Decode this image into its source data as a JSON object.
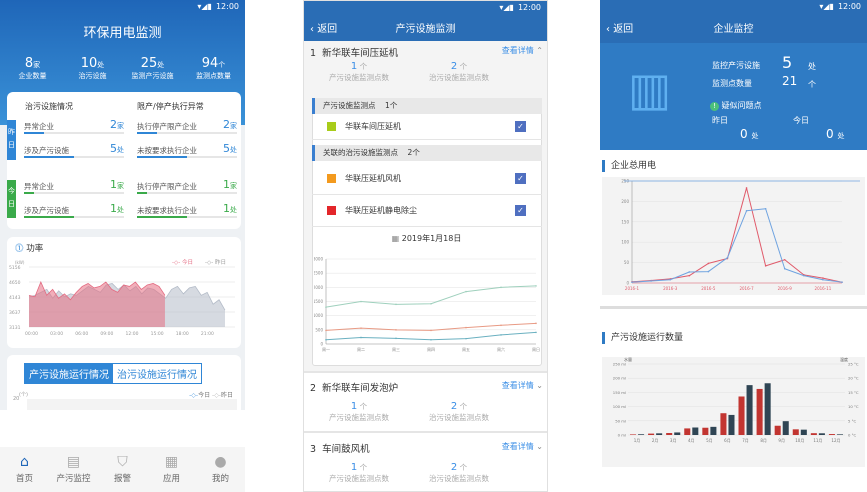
{
  "status_time": "12:00",
  "home": {
    "title": "环保用电监测",
    "stats": [
      {
        "value": "8",
        "unit": "家",
        "label": "企业数量"
      },
      {
        "value": "10",
        "unit": "处",
        "label": "治污设施"
      },
      {
        "value": "25",
        "unit": "处",
        "label": "监测产污设施"
      },
      {
        "value": "94",
        "unit": "个",
        "label": "监测点数量"
      }
    ],
    "left_heading": "治污设施情况",
    "right_heading": "限产/停产执行异常",
    "yesterday_label": "昨日",
    "today_label": "今日",
    "yesterday": [
      {
        "label": "异常企业",
        "value": "2",
        "unit": "家",
        "progress": 0.2
      },
      {
        "label": "涉及产污设施",
        "value": "5",
        "unit": "处",
        "progress": 0.5
      },
      {
        "label": "执行停产限产企业",
        "value": "2",
        "unit": "家",
        "progress": 0.2
      },
      {
        "label": "未按要求执行企业",
        "value": "5",
        "unit": "处",
        "progress": 0.5
      }
    ],
    "today": [
      {
        "label": "异常企业",
        "value": "1",
        "unit": "家",
        "progress": 0.1
      },
      {
        "label": "涉及产污设施",
        "value": "1",
        "unit": "处",
        "progress": 0.5
      },
      {
        "label": "执行停产限产企业",
        "value": "1",
        "unit": "家",
        "progress": 0.1
      },
      {
        "label": "未按要求执行企业",
        "value": "1",
        "unit": "处",
        "progress": 0.5
      }
    ],
    "power": {
      "title": "功率",
      "unit": "(kW)",
      "legend": [
        "今日",
        "昨日"
      ],
      "yticks": [
        "5156",
        "4650",
        "4143",
        "3637",
        "3131"
      ],
      "xticks": [
        "00:00",
        "03:00",
        "06:00",
        "09:00",
        "12:00",
        "15:00",
        "18:00",
        "21:00"
      ],
      "today": [
        4200,
        4150,
        4650,
        4200,
        4400,
        4100,
        4250,
        4050,
        4300,
        4500,
        4600,
        4450,
        4500,
        4650,
        4400,
        4300,
        4550,
        4500,
        4650,
        4400,
        4550,
        4600,
        4500,
        4200
      ],
      "yesterday": [
        4150,
        4200,
        4300,
        4400,
        4100,
        4350,
        4150,
        4250,
        4200,
        4350,
        4500,
        4400,
        4300,
        4550,
        4600,
        4400,
        4550,
        4350,
        4500,
        4250,
        4450,
        4400,
        4250,
        4100,
        4400,
        4500,
        4250,
        4450,
        4500,
        4200,
        4300,
        3900,
        4050,
        3700
      ]
    },
    "toggle": [
      "产污设施运行情况",
      "治污设施运行情况"
    ],
    "bottom_chart": {
      "unit": "(个)",
      "ymax": "20",
      "legend": [
        "今日",
        "昨日"
      ]
    },
    "tabs": [
      {
        "label": "首页",
        "icon": "home-icon"
      },
      {
        "label": "产污监控",
        "icon": "monitor-icon"
      },
      {
        "label": "报警",
        "icon": "alarm-shield-icon"
      },
      {
        "label": "应用",
        "icon": "apps-icon"
      },
      {
        "label": "我的",
        "icon": "user-icon"
      }
    ]
  },
  "facility": {
    "back": "返回",
    "title": "产污设施监测",
    "detail_link": "查看详情",
    "count_labels": [
      "产污设施监测点数",
      "治污设施监测点数"
    ],
    "items": [
      {
        "index": "1",
        "name": "新华联车间压延机",
        "prod": "1",
        "treat": "2",
        "unit": "个"
      },
      {
        "index": "2",
        "name": "新华联车间发泡炉",
        "prod": "1",
        "treat": "2",
        "unit": "个"
      },
      {
        "index": "3",
        "name": "车间鼓风机",
        "prod": "1",
        "treat": "2",
        "unit": "个"
      }
    ],
    "prod_section": {
      "label": "产污设施监测点",
      "count": "1个"
    },
    "treat_section": {
      "label": "关联的治污设施监测点",
      "count": "2个"
    },
    "monitors": [
      {
        "name": "华联车间压延机",
        "color": "#a8cc1a",
        "checked": true
      },
      {
        "name": "华联压延机风机",
        "color": "#f39a1e",
        "checked": true
      },
      {
        "name": "华联压延机静电除尘",
        "color": "#e3262a",
        "checked": true
      }
    ],
    "date": "2019年1月18日",
    "chart_data": {
      "type": "line",
      "categories": [
        "周一",
        "周二",
        "周三",
        "周四",
        "周五",
        "周六",
        "周日"
      ],
      "ylim": [
        0,
        3000
      ],
      "yticks": [
        0,
        500,
        1000,
        1500,
        2000,
        2500,
        3000
      ],
      "series": [
        {
          "color": "#9fd0bd",
          "values": [
            1300,
            1500,
            1400,
            1420,
            1850,
            2000,
            2050
          ]
        },
        {
          "color": "#e89a84",
          "values": [
            480,
            560,
            500,
            480,
            580,
            660,
            730
          ]
        },
        {
          "color": "#6ab0c0",
          "values": [
            150,
            230,
            200,
            150,
            190,
            320,
            410
          ]
        }
      ]
    }
  },
  "enterprise": {
    "back": "返回",
    "title": "企业监控",
    "monitored_label": "监控产污设施",
    "monitored_value": "5",
    "monitored_unit": "处",
    "points_label": "监测点数量",
    "points_value": "21",
    "points_unit": "个",
    "suspect_label": "疑似问题点",
    "yesterday_label": "昨日",
    "today_label": "今日",
    "yesterday_value": "0",
    "today_value": "0",
    "unit": "处",
    "power_title": "企业总用电",
    "chart_data": {
      "type": "line",
      "x": [
        "2016-1",
        "2016-2",
        "2016-3",
        "2016-4",
        "2016-5",
        "2016-6",
        "2016-7",
        "2016-8",
        "2016-9",
        "2016-10",
        "2016-11",
        "2016-12"
      ],
      "xticks": [
        "2016-1",
        "2016-3",
        "2016-5",
        "2016-7",
        "2016-9",
        "2016-11"
      ],
      "ylim": [
        0,
        250
      ],
      "yticks": [
        0,
        50,
        100,
        150,
        200,
        250
      ],
      "series": [
        {
          "color": "#e05a6a",
          "values": [
            3,
            6,
            10,
            18,
            48,
            60,
            233,
            42,
            57,
            20,
            12,
            2
          ]
        },
        {
          "color": "#6fa3e0",
          "values": [
            2,
            5,
            8,
            27,
            28,
            62,
            177,
            182,
            35,
            18,
            8,
            2
          ]
        }
      ]
    },
    "run_title": "产污设施运行数量",
    "bar_chart": {
      "type": "bar",
      "categories": [
        "1月",
        "2月",
        "3月",
        "4月",
        "5月",
        "6月",
        "7月",
        "8月",
        "9月",
        "10月",
        "11月",
        "12月"
      ],
      "left_label": "水量",
      "right_label": "温度",
      "yticks_left": [
        "0 ml",
        "50 ml",
        "100 ml",
        "150 ml",
        "200 ml",
        "250 ml"
      ],
      "yticks_right": [
        "0 °C",
        "5 °C",
        "10 °C",
        "15 °C",
        "20 °C",
        "25 °C"
      ],
      "ylim": [
        0,
        250
      ],
      "series": [
        {
          "color": "#c23531",
          "values": [
            2.0,
            4.9,
            7.0,
            23.2,
            25.6,
            76.7,
            135.6,
            162.2,
            32.6,
            20.0,
            6.4,
            3.3
          ]
        },
        {
          "color": "#2f4554",
          "values": [
            2.6,
            5.9,
            9.0,
            26.4,
            28.7,
            70.7,
            175.6,
            182.2,
            48.7,
            18.8,
            6.0,
            2.3
          ]
        }
      ]
    }
  }
}
